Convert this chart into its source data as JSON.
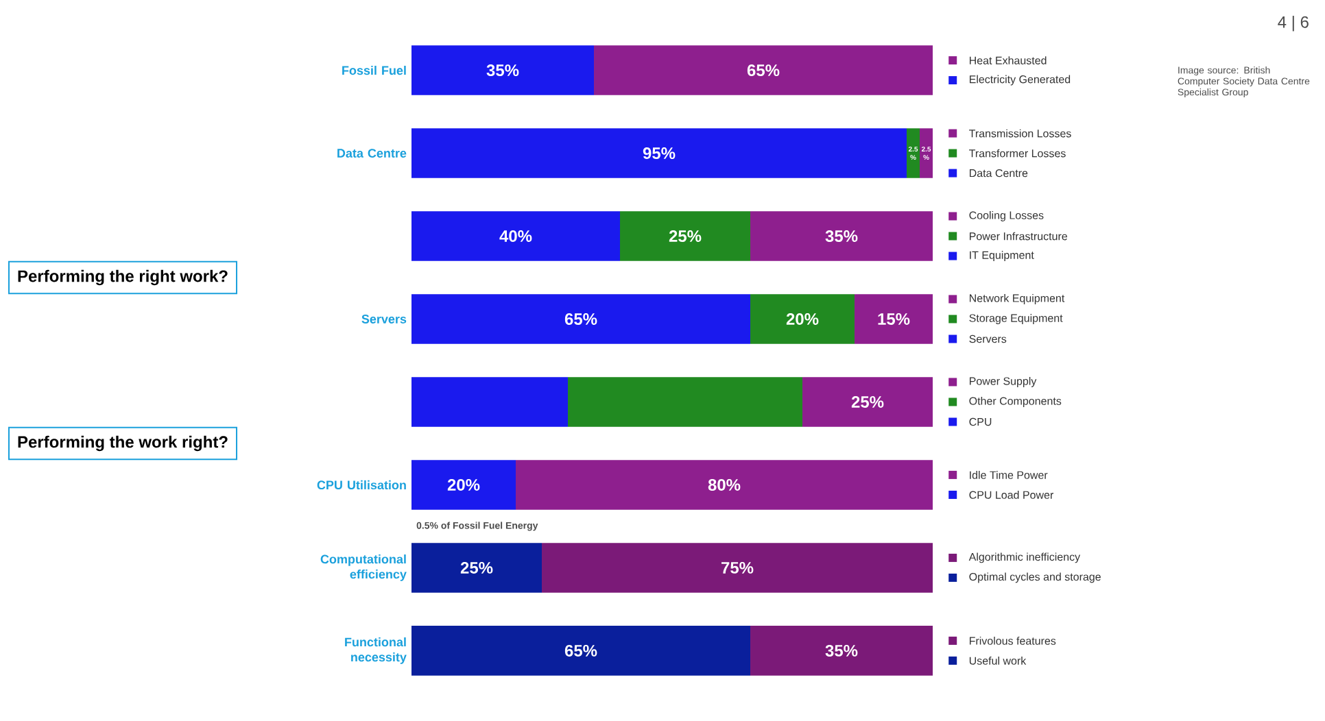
{
  "chart_data": {
    "type": "bar",
    "orientation": "horizontal",
    "stacked": true,
    "legend": "right",
    "categories": [
      "Fossil Fuel",
      "Data Centre",
      null,
      "Servers",
      null,
      "CPU Utilisation",
      "Computational efficiency",
      "Functional necessity"
    ],
    "series": [
      {
        "name": "Electricity Generated",
        "color": "#1a1aee",
        "values": [
          35,
          null,
          null,
          null,
          null,
          null,
          null,
          null
        ],
        "value_labels": [
          "35%",
          null,
          null,
          null,
          null,
          null,
          null,
          null
        ]
      },
      {
        "name": "Heat Exhausted",
        "color": "#8e1f8e",
        "values": [
          65,
          null,
          null,
          null,
          null,
          null,
          null,
          null
        ],
        "value_labels": [
          "65%",
          null,
          null,
          null,
          null,
          null,
          null,
          null
        ]
      },
      {
        "name": "Data Centre",
        "color": "#1a1aee",
        "values": [
          null,
          95,
          null,
          null,
          null,
          null,
          null,
          null
        ],
        "value_labels": [
          null,
          "95%",
          null,
          null,
          null,
          null,
          null,
          null
        ]
      },
      {
        "name": "Transformer Losses",
        "color": "#218a21",
        "values": [
          null,
          2.5,
          null,
          null,
          null,
          null,
          null,
          null
        ],
        "value_labels": [
          null,
          "2.5 %",
          null,
          null,
          null,
          null,
          null,
          null
        ]
      },
      {
        "name": "Transmission Losses",
        "color": "#8e1f8e",
        "values": [
          null,
          2.5,
          null,
          null,
          null,
          null,
          null,
          null
        ],
        "value_labels": [
          null,
          "2.5 %",
          null,
          null,
          null,
          null,
          null,
          null
        ]
      },
      {
        "name": "IT Equipment",
        "color": "#1a1aee",
        "values": [
          null,
          null,
          40,
          null,
          null,
          null,
          null,
          null
        ],
        "value_labels": [
          null,
          null,
          "40%",
          null,
          null,
          null,
          null,
          null
        ]
      },
      {
        "name": "Power Infrastructure",
        "color": "#218a21",
        "values": [
          null,
          null,
          25,
          null,
          null,
          null,
          null,
          null
        ],
        "value_labels": [
          null,
          null,
          "25%",
          null,
          null,
          null,
          null,
          null
        ]
      },
      {
        "name": "Cooling Losses",
        "color": "#8e1f8e",
        "values": [
          null,
          null,
          35,
          null,
          null,
          null,
          null,
          null
        ],
        "value_labels": [
          null,
          null,
          "35%",
          null,
          null,
          null,
          null,
          null
        ]
      },
      {
        "name": "Servers",
        "color": "#1a1aee",
        "values": [
          null,
          null,
          null,
          65,
          null,
          null,
          null,
          null
        ],
        "value_labels": [
          null,
          null,
          null,
          "65%",
          null,
          null,
          null,
          null
        ]
      },
      {
        "name": "Storage Equipment",
        "color": "#218a21",
        "values": [
          null,
          null,
          null,
          20,
          null,
          null,
          null,
          null
        ],
        "value_labels": [
          null,
          null,
          null,
          "20%",
          null,
          null,
          null,
          null
        ]
      },
      {
        "name": "Network Equipment",
        "color": "#8e1f8e",
        "values": [
          null,
          null,
          null,
          15,
          null,
          null,
          null,
          null
        ],
        "value_labels": [
          null,
          null,
          null,
          "15%",
          null,
          null,
          null,
          null
        ]
      },
      {
        "name": "CPU",
        "color": "#1a1aee",
        "values": [
          null,
          null,
          null,
          null,
          30,
          null,
          null,
          null
        ],
        "value_labels": [
          null,
          null,
          null,
          null,
          null,
          null,
          null,
          null
        ]
      },
      {
        "name": "Other Components",
        "color": "#218a21",
        "values": [
          null,
          null,
          null,
          null,
          45,
          null,
          null,
          null
        ],
        "value_labels": [
          null,
          null,
          null,
          null,
          null,
          null,
          null,
          null
        ]
      },
      {
        "name": "Power Supply",
        "color": "#8e1f8e",
        "values": [
          null,
          null,
          null,
          null,
          25,
          null,
          null,
          null
        ],
        "value_labels": [
          null,
          null,
          null,
          null,
          "25%",
          null,
          null,
          null
        ]
      },
      {
        "name": "CPU Load Power",
        "color": "#1a1aee",
        "values": [
          null,
          null,
          null,
          null,
          null,
          20,
          null,
          null
        ],
        "value_labels": [
          null,
          null,
          null,
          null,
          null,
          "20%",
          null,
          null
        ]
      },
      {
        "name": "Idle Time Power",
        "color": "#8e1f8e",
        "values": [
          null,
          null,
          null,
          null,
          null,
          80,
          null,
          null
        ],
        "value_labels": [
          null,
          null,
          null,
          null,
          null,
          "80%",
          null,
          null
        ]
      },
      {
        "name": "Optimal cycles and storage",
        "color": "#0a1f9c",
        "values": [
          null,
          null,
          null,
          null,
          null,
          null,
          25,
          null
        ],
        "value_labels": [
          null,
          null,
          null,
          null,
          null,
          null,
          "25%",
          null
        ]
      },
      {
        "name": "Algorithmic inefficiency",
        "color": "#7b1a78",
        "values": [
          null,
          null,
          null,
          null,
          null,
          null,
          75,
          null
        ],
        "value_labels": [
          null,
          null,
          null,
          null,
          null,
          null,
          "75%",
          null
        ]
      },
      {
        "name": "Useful work",
        "color": "#0a1f9c",
        "values": [
          null,
          null,
          null,
          null,
          null,
          null,
          null,
          65
        ],
        "value_labels": [
          null,
          null,
          null,
          null,
          null,
          null,
          null,
          "65%"
        ]
      },
      {
        "name": "Frivolous features",
        "color": "#7b1a78",
        "values": [
          null,
          null,
          null,
          null,
          null,
          null,
          null,
          35
        ],
        "value_labels": [
          null,
          null,
          null,
          null,
          null,
          null,
          null,
          "35%"
        ]
      }
    ],
    "annotations": [
      "Performing the right work?",
      "Performing the work right?",
      "0.5% of Fossil Fuel Energy",
      "4 | 6",
      "Image source: British Computer Society Data Centre Specialist Group"
    ]
  }
}
